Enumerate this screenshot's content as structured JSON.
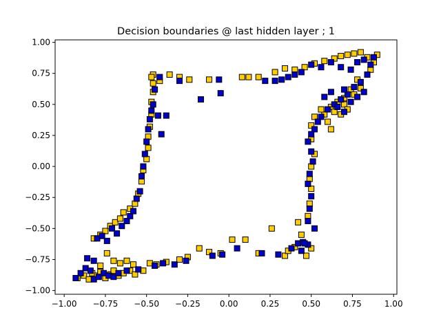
{
  "chart_data": {
    "type": "scatter",
    "title": "Decision boundaries @ last hidden layer ; 1",
    "xlabel": "",
    "ylabel": "",
    "xlim": [
      -1.0,
      1.0
    ],
    "ylim": [
      -1.0,
      1.0
    ],
    "x_ticks": [
      "−1.00",
      "−0.75",
      "−0.50",
      "−0.25",
      "0.00",
      "0.25",
      "0.50",
      "0.75",
      "1.00"
    ],
    "y_ticks": [
      "−1.00",
      "−0.75",
      "−0.50",
      "−0.25",
      "0.00",
      "0.25",
      "0.50",
      "0.75",
      "1.00"
    ],
    "grid": false,
    "marker": "square",
    "series": [
      {
        "color": "#FFCC00",
        "points": [
          [
            -0.92,
            -0.9
          ],
          [
            -0.88,
            -0.88
          ],
          [
            -0.85,
            -0.91
          ],
          [
            -0.83,
            -0.86
          ],
          [
            -0.8,
            -0.88
          ],
          [
            -0.78,
            -0.85
          ],
          [
            -0.75,
            -0.9
          ],
          [
            -0.72,
            -0.87
          ],
          [
            -0.7,
            -0.84
          ],
          [
            -0.67,
            -0.88
          ],
          [
            -0.64,
            -0.86
          ],
          [
            -0.6,
            -0.84
          ],
          [
            -0.57,
            -0.87
          ],
          [
            -0.52,
            -0.84
          ],
          [
            -0.48,
            -0.78
          ],
          [
            -0.44,
            -0.79
          ],
          [
            -0.38,
            -0.77
          ],
          [
            -0.3,
            -0.75
          ],
          [
            -0.25,
            -0.73
          ],
          [
            -0.18,
            -0.66
          ],
          [
            -0.12,
            -0.69
          ],
          [
            -0.05,
            -0.7
          ],
          [
            0.02,
            -0.59
          ],
          [
            0.1,
            -0.59
          ],
          [
            0.18,
            -0.7
          ],
          [
            0.26,
            -0.5
          ],
          [
            0.34,
            -0.72
          ],
          [
            0.42,
            -0.45
          ],
          [
            0.47,
            -0.72
          ],
          [
            0.5,
            -0.66
          ],
          [
            -0.78,
            -0.8
          ],
          [
            -0.74,
            -0.7
          ],
          [
            -0.7,
            -0.76
          ],
          [
            -0.66,
            -0.78
          ],
          [
            -0.62,
            -0.76
          ],
          [
            -0.58,
            -0.79
          ],
          [
            -0.82,
            -0.58
          ],
          [
            -0.78,
            -0.55
          ],
          [
            -0.75,
            -0.52
          ],
          [
            -0.72,
            -0.48
          ],
          [
            -0.69,
            -0.45
          ],
          [
            -0.66,
            -0.42
          ],
          [
            -0.64,
            -0.37
          ],
          [
            -0.6,
            -0.34
          ],
          [
            -0.57,
            -0.3
          ],
          [
            -0.55,
            -0.22
          ],
          [
            -0.53,
            -0.12
          ],
          [
            -0.52,
            -0.03
          ],
          [
            -0.5,
            0.06
          ],
          [
            -0.49,
            0.15
          ],
          [
            -0.49,
            0.24
          ],
          [
            -0.48,
            0.32
          ],
          [
            -0.47,
            0.42
          ],
          [
            -0.47,
            0.52
          ],
          [
            -0.46,
            0.6
          ],
          [
            -0.46,
            0.67
          ],
          [
            -0.46,
            0.74
          ],
          [
            -0.47,
            0.72
          ],
          [
            -0.42,
            0.69
          ],
          [
            -0.36,
            0.74
          ],
          [
            -0.3,
            0.72
          ],
          [
            -0.24,
            0.7
          ],
          [
            -0.12,
            0.7
          ],
          [
            0.08,
            0.72
          ],
          [
            0.12,
            0.72
          ],
          [
            0.18,
            0.72
          ],
          [
            0.28,
            0.76
          ],
          [
            0.34,
            0.79
          ],
          [
            0.4,
            0.78
          ],
          [
            0.46,
            0.8
          ],
          [
            0.52,
            0.83
          ],
          [
            0.58,
            0.85
          ],
          [
            0.64,
            0.87
          ],
          [
            0.68,
            0.89
          ],
          [
            0.72,
            0.9
          ],
          [
            0.76,
            0.91
          ],
          [
            0.8,
            0.92
          ],
          [
            0.84,
            0.88
          ],
          [
            0.88,
            0.84
          ],
          [
            0.9,
            0.9
          ],
          [
            0.86,
            0.78
          ],
          [
            0.78,
            0.7
          ],
          [
            0.74,
            0.62
          ],
          [
            0.7,
            0.55
          ],
          [
            0.66,
            0.52
          ],
          [
            0.62,
            0.48
          ],
          [
            0.58,
            0.42
          ],
          [
            0.6,
            0.36
          ],
          [
            0.62,
            0.3
          ],
          [
            0.56,
            0.46
          ],
          [
            0.52,
            0.4
          ],
          [
            0.5,
            0.33
          ],
          [
            0.5,
            0.22
          ],
          [
            0.52,
            0.1
          ],
          [
            0.5,
            0.0
          ],
          [
            0.49,
            -0.1
          ],
          [
            0.5,
            -0.18
          ],
          [
            0.49,
            -0.3
          ],
          [
            0.48,
            -0.4
          ],
          [
            0.44,
            -0.55
          ],
          [
            0.4,
            -0.65
          ],
          [
            0.36,
            -0.68
          ],
          [
            0.64,
            0.44
          ],
          [
            0.7,
            0.5
          ],
          [
            0.76,
            0.58
          ],
          [
            0.8,
            0.63
          ],
          [
            0.72,
            0.46
          ],
          [
            0.68,
            0.42
          ]
        ]
      },
      {
        "color": "#0000CC",
        "points": [
          [
            -0.93,
            -0.9
          ],
          [
            -0.9,
            -0.86
          ],
          [
            -0.87,
            -0.82
          ],
          [
            -0.84,
            -0.84
          ],
          [
            -0.82,
            -0.91
          ],
          [
            -0.79,
            -0.89
          ],
          [
            -0.76,
            -0.86
          ],
          [
            -0.73,
            -0.88
          ],
          [
            -0.7,
            -0.89
          ],
          [
            -0.67,
            -0.86
          ],
          [
            -0.62,
            -0.84
          ],
          [
            -0.55,
            -0.83
          ],
          [
            -0.45,
            -0.8
          ],
          [
            -0.4,
            -0.78
          ],
          [
            -0.33,
            -0.79
          ],
          [
            -0.26,
            -0.76
          ],
          [
            -0.1,
            -0.72
          ],
          [
            -0.04,
            -0.71
          ],
          [
            0.05,
            -0.66
          ],
          [
            0.2,
            -0.7
          ],
          [
            0.3,
            -0.71
          ],
          [
            0.38,
            -0.66
          ],
          [
            0.42,
            -0.62
          ],
          [
            0.45,
            -0.61
          ],
          [
            0.48,
            -0.63
          ],
          [
            0.44,
            -0.68
          ],
          [
            -0.86,
            -0.74
          ],
          [
            -0.82,
            -0.76
          ],
          [
            -0.8,
            -0.58
          ],
          [
            -0.77,
            -0.56
          ],
          [
            -0.74,
            -0.6
          ],
          [
            -0.71,
            -0.5
          ],
          [
            -0.68,
            -0.54
          ],
          [
            -0.65,
            -0.48
          ],
          [
            -0.62,
            -0.44
          ],
          [
            -0.6,
            -0.4
          ],
          [
            -0.58,
            -0.36
          ],
          [
            -0.56,
            -0.26
          ],
          [
            -0.54,
            -0.2
          ],
          [
            -0.53,
            -0.08
          ],
          [
            -0.52,
            0.0
          ],
          [
            -0.51,
            0.1
          ],
          [
            -0.5,
            0.2
          ],
          [
            -0.49,
            0.3
          ],
          [
            -0.48,
            0.38
          ],
          [
            -0.47,
            0.45
          ],
          [
            -0.46,
            0.5
          ],
          [
            -0.45,
            0.62
          ],
          [
            -0.43,
            0.41
          ],
          [
            -0.41,
            0.26
          ],
          [
            -0.38,
            0.41
          ],
          [
            -0.42,
            0.72
          ],
          [
            -0.3,
            0.69
          ],
          [
            -0.17,
            0.54
          ],
          [
            -0.05,
            0.59
          ],
          [
            -0.06,
            0.7
          ],
          [
            0.22,
            0.69
          ],
          [
            0.28,
            0.69
          ],
          [
            0.32,
            0.7
          ],
          [
            0.36,
            0.72
          ],
          [
            0.4,
            0.74
          ],
          [
            0.44,
            0.76
          ],
          [
            0.5,
            0.82
          ],
          [
            0.56,
            0.8
          ],
          [
            0.62,
            0.84
          ],
          [
            0.68,
            0.8
          ],
          [
            0.74,
            0.78
          ],
          [
            0.78,
            0.84
          ],
          [
            0.82,
            0.86
          ],
          [
            0.86,
            0.82
          ],
          [
            0.88,
            0.88
          ],
          [
            0.84,
            0.74
          ],
          [
            0.8,
            0.68
          ],
          [
            0.76,
            0.64
          ],
          [
            0.72,
            0.58
          ],
          [
            0.68,
            0.54
          ],
          [
            0.64,
            0.5
          ],
          [
            0.6,
            0.46
          ],
          [
            0.56,
            0.4
          ],
          [
            0.54,
            0.36
          ],
          [
            0.52,
            0.3
          ],
          [
            0.5,
            0.26
          ],
          [
            0.48,
            0.2
          ],
          [
            0.5,
            0.12
          ],
          [
            0.51,
            0.04
          ],
          [
            0.49,
            -0.06
          ],
          [
            0.48,
            -0.14
          ],
          [
            0.5,
            -0.24
          ],
          [
            0.49,
            -0.34
          ],
          [
            0.48,
            -0.44
          ],
          [
            0.52,
            -0.5
          ],
          [
            0.46,
            -0.62
          ],
          [
            0.58,
            0.56
          ],
          [
            0.62,
            0.6
          ],
          [
            0.66,
            0.48
          ],
          [
            0.7,
            0.44
          ],
          [
            0.74,
            0.52
          ],
          [
            0.78,
            0.56
          ],
          [
            0.82,
            0.6
          ],
          [
            0.7,
            0.62
          ]
        ]
      }
    ]
  }
}
